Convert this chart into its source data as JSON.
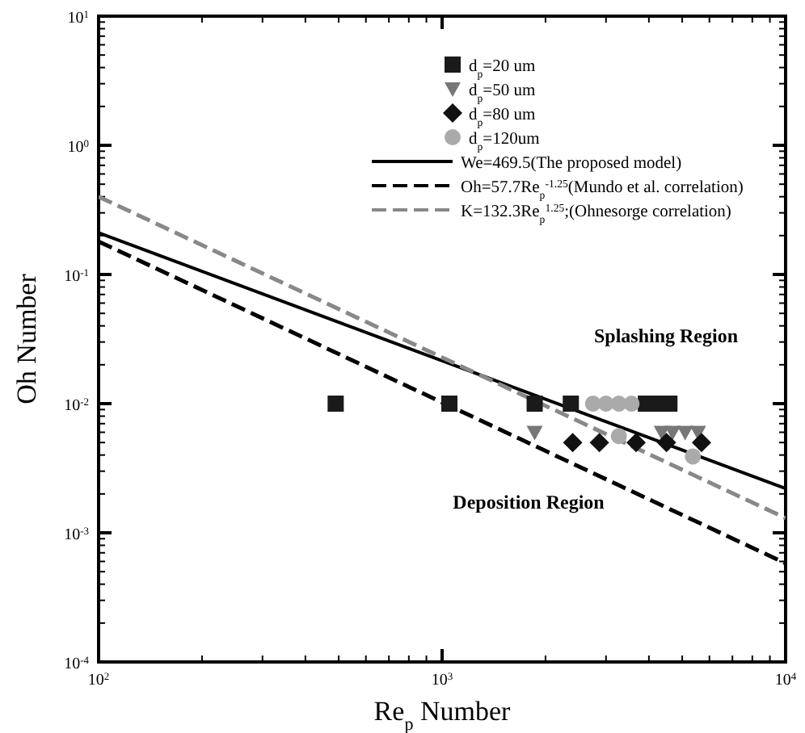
{
  "chart_data": {
    "type": "scatter",
    "xlabel": "Re$_{p}$ Number",
    "ylabel": "Oh Number",
    "log": "xy",
    "legend": "top right",
    "grid": false,
    "xlim": [
      100,
      10000
    ],
    "ylim": [
      0.0001,
      10
    ],
    "xticks": [
      {
        "value": 100,
        "label": "10$^{2}$"
      },
      {
        "value": 200,
        "label": null
      },
      {
        "value": 300,
        "label": null
      },
      {
        "value": 400,
        "label": null
      },
      {
        "value": 500,
        "label": null
      },
      {
        "value": 600,
        "label": null
      },
      {
        "value": 700,
        "label": null
      },
      {
        "value": 800,
        "label": null
      },
      {
        "value": 900,
        "label": null
      },
      {
        "value": 1000,
        "label": "10$^{3}$"
      },
      {
        "value": 2000,
        "label": null
      },
      {
        "value": 3000,
        "label": null
      },
      {
        "value": 4000,
        "label": null
      },
      {
        "value": 5000,
        "label": null
      },
      {
        "value": 6000,
        "label": null
      },
      {
        "value": 7000,
        "label": null
      },
      {
        "value": 8000,
        "label": null
      },
      {
        "value": 9000,
        "label": null
      },
      {
        "value": 10000,
        "label": "10$^{4}$"
      }
    ],
    "yticks": [
      {
        "value": 0.0001,
        "label": "10$^{-4}$"
      },
      {
        "value": 0.001,
        "label": "10$^{-3}$"
      },
      {
        "value": 0.01,
        "label": "10$^{-2}$"
      },
      {
        "value": 0.1,
        "label": "10$^{-1}$"
      },
      {
        "value": 1,
        "label": "10$^{0}$"
      },
      {
        "value": 10,
        "label": "10$^{1}$"
      }
    ],
    "annotations": [
      "Splashing Region",
      "Deposition Region"
    ],
    "series": [
      {
        "name": "d$_{p}$=20 um",
        "marker": "square",
        "color": "#1a1a1a",
        "x": [
          490,
          1050,
          1860,
          2370,
          3920,
          4220,
          4590
        ],
        "values": [
          0.01,
          0.01,
          0.01,
          0.01,
          0.01,
          0.01,
          0.01
        ]
      },
      {
        "name": "d$_{p}$=50 um",
        "marker": "triangle",
        "color": "#777777",
        "x": [
          1860,
          4360,
          4690,
          5100,
          5560
        ],
        "values": [
          0.006,
          0.006,
          0.006,
          0.006,
          0.006
        ]
      },
      {
        "name": "d$_{p}$=80 um",
        "marker": "diamond",
        "color": "#111111",
        "x": [
          2400,
          2870,
          3670,
          4500,
          5690
        ],
        "values": [
          0.005,
          0.005,
          0.005,
          0.005,
          0.005
        ]
      },
      {
        "name": "d$_{p}$=120um",
        "marker": "circle",
        "color": "#aaaaaa",
        "x": [
          2750,
          3000,
          3270,
          3560,
          3270,
          5370
        ],
        "values": [
          0.01,
          0.01,
          0.01,
          0.01,
          0.0056,
          0.0039
        ]
      },
      {
        "name": "We=469.5(The proposed model)",
        "type": "line",
        "line_style": "solid",
        "color": "#000000",
        "x": [
          100,
          10000
        ],
        "values": [
          0.21,
          0.0022
        ]
      },
      {
        "name": "Oh=57.7Re$_{p}$$^{-1.25}$(Mundo et al. correlation)",
        "type": "line",
        "line_style": "dashed",
        "color": "#000000",
        "x": [
          100,
          10000
        ],
        "values": [
          0.18,
          0.00058
        ]
      },
      {
        "name": "K=132.3Re$_{p}$$^{1.25}$;(Ohnesorge correlation)",
        "type": "line",
        "line_style": "dashed",
        "color": "#888888",
        "x": [
          100,
          10000
        ],
        "values": [
          0.4,
          0.0013
        ]
      }
    ]
  }
}
